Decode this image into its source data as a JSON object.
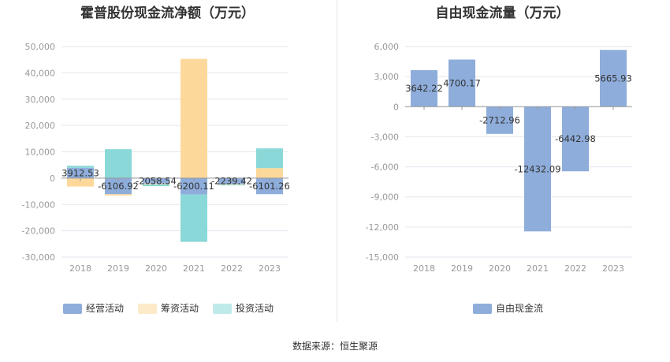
{
  "source_label": "数据来源：恒生聚源",
  "chart_data": [
    {
      "type": "bar",
      "stacked": true,
      "title": "霍普股份现金流净额（万元）",
      "categories": [
        "2018",
        "2019",
        "2020",
        "2021",
        "2022",
        "2023"
      ],
      "ylim": [
        -30000,
        50000
      ],
      "yticks": [
        50000,
        40000,
        30000,
        20000,
        10000,
        0,
        -10000,
        -20000,
        -30000
      ],
      "ytick_labels": [
        "50,000",
        "40,000",
        "30,000",
        "20,000",
        "10,000",
        "0",
        "-10,000",
        "-20,000",
        "-30,000"
      ],
      "grid": true,
      "legend_position": "bottom",
      "series": [
        {
          "name": "经营活动",
          "color": "#8eaddb",
          "values": [
            3912.53,
            -6106.92,
            -2058.54,
            -6200.11,
            -2239.42,
            -6101.26
          ]
        },
        {
          "name": "筹资活动",
          "color": "#fcd99b",
          "values": [
            -3200,
            -500,
            -300,
            45300,
            -200,
            3800
          ]
        },
        {
          "name": "投资活动",
          "color": "#8ad8d8",
          "values": [
            800,
            11000,
            -700,
            -18000,
            -300,
            7500
          ]
        }
      ],
      "data_labels": [
        "3912.53",
        "-6106.92",
        "-2058.54",
        "-6200.11",
        "-2239.42",
        "-6101.26"
      ]
    },
    {
      "type": "bar",
      "title": "自由现金流量（万元）",
      "categories": [
        "2018",
        "2019",
        "2020",
        "2021",
        "2022",
        "2023"
      ],
      "ylim": [
        -15000,
        6000
      ],
      "yticks": [
        6000,
        3000,
        0,
        -3000,
        -6000,
        -9000,
        -12000,
        -15000
      ],
      "ytick_labels": [
        "6,000",
        "3,000",
        "0",
        "-3,000",
        "-6,000",
        "-9,000",
        "-12,000",
        "-15,000"
      ],
      "grid": true,
      "legend_position": "bottom",
      "series": [
        {
          "name": "自由现金流",
          "color": "#8eaddb",
          "values": [
            3642.22,
            4700.17,
            -2712.96,
            -12432.09,
            -6442.98,
            5665.93
          ]
        }
      ],
      "data_labels": [
        "3642.22",
        "4700.17",
        "-2712.96",
        "-12432.09",
        "-6442.98",
        "5665.93"
      ]
    }
  ]
}
